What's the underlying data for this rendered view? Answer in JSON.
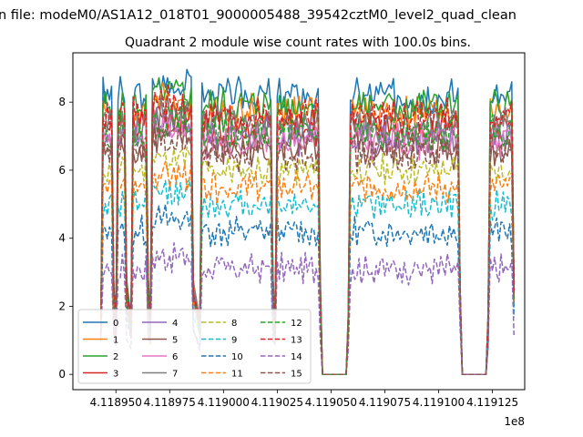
{
  "suptitle": "n file: modeM0/AS1A12_018T01_9000005488_39542cztM0_level2_quad_clean",
  "chart_data": {
    "type": "line",
    "title": "Quadrant 2 module wise count rates with 100.0s bins.",
    "xlabel": "",
    "ylabel": "",
    "x_offset_label": "1e8",
    "xlim": [
      4.11893,
      4.11914
    ],
    "ylim": [
      -0.45,
      9.45
    ],
    "xticks": [
      4.11895,
      4.118975,
      4.119,
      4.119025,
      4.11905,
      4.119075,
      4.1191,
      4.119125
    ],
    "xtick_labels": [
      "4.118950",
      "4.118975",
      "4.119000",
      "4.119025",
      "4.119050",
      "4.119075",
      "4.119100",
      "4.119125"
    ],
    "yticks": [
      0,
      2,
      4,
      6,
      8
    ],
    "ytick_labels": [
      "0",
      "2",
      "4",
      "6",
      "8"
    ],
    "grid": false,
    "legend_position": "lower-left",
    "legend_columns": 4,
    "segments": [
      {
        "start": 4.118943,
        "end": 4.118949
      },
      {
        "start": 4.11895,
        "end": 4.118955
      },
      {
        "start": 4.118957,
        "end": 4.118965
      },
      {
        "start": 4.118966,
        "end": 4.118986
      },
      {
        "start": 4.118989,
        "end": 4.119023
      },
      {
        "start": 4.119024,
        "end": 4.119045
      },
      {
        "start": 4.119058,
        "end": 4.11911
      },
      {
        "start": 4.119123,
        "end": 4.119135
      }
    ],
    "gaps": [
      {
        "start": 4.119046,
        "end": 4.119057,
        "value": 0
      },
      {
        "start": 4.119111,
        "end": 4.119122,
        "value": 0
      }
    ],
    "series": [
      {
        "name": "0",
        "color": "#1f77b4",
        "dash": "solid",
        "level": 8.2
      },
      {
        "name": "1",
        "color": "#ff7f0e",
        "dash": "solid",
        "level": 7.7
      },
      {
        "name": "2",
        "color": "#2ca02c",
        "dash": "solid",
        "level": 7.9
      },
      {
        "name": "3",
        "color": "#d62728",
        "dash": "solid",
        "level": 7.3
      },
      {
        "name": "4",
        "color": "#9467bd",
        "dash": "solid",
        "level": 7.0
      },
      {
        "name": "5",
        "color": "#8c564b",
        "dash": "solid",
        "level": 6.6
      },
      {
        "name": "6",
        "color": "#e377c2",
        "dash": "solid",
        "level": 6.9
      },
      {
        "name": "7",
        "color": "#7f7f7f",
        "dash": "solid",
        "level": 7.4
      },
      {
        "name": "8",
        "color": "#bcbd22",
        "dash": "dashed",
        "level": 6.0
      },
      {
        "name": "9",
        "color": "#17becf",
        "dash": "dashed",
        "level": 5.0
      },
      {
        "name": "10",
        "color": "#1f77b4",
        "dash": "dashed",
        "level": 4.2
      },
      {
        "name": "11",
        "color": "#ff7f0e",
        "dash": "dashed",
        "level": 5.5
      },
      {
        "name": "12",
        "color": "#2ca02c",
        "dash": "dashed",
        "level": 7.1
      },
      {
        "name": "13",
        "color": "#d62728",
        "dash": "dashed",
        "level": 7.6
      },
      {
        "name": "14",
        "color": "#9467bd",
        "dash": "dashed",
        "level": 3.1
      },
      {
        "name": "15",
        "color": "#8c564b",
        "dash": "dashed",
        "level": 6.5
      }
    ]
  }
}
